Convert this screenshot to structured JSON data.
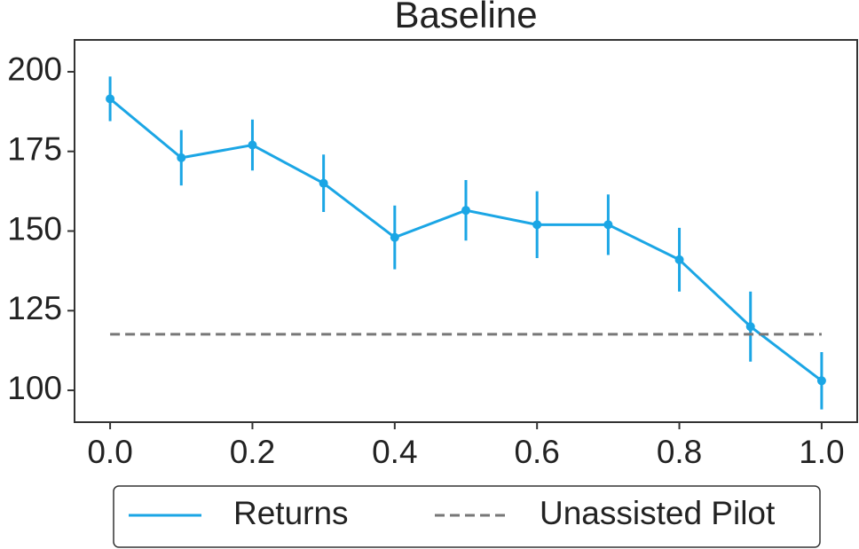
{
  "chart_data": {
    "type": "line",
    "title": "Baseline",
    "x": [
      0.0,
      0.1,
      0.2,
      0.3,
      0.4,
      0.5,
      0.6,
      0.7,
      0.8,
      0.9,
      1.0
    ],
    "series": [
      {
        "name": "Returns",
        "color": "#1ba6e5",
        "values": [
          191.5,
          173,
          177,
          165,
          148,
          156.5,
          152,
          152,
          141,
          120,
          103
        ],
        "errors": [
          7,
          8.7,
          8,
          9,
          10,
          9.5,
          10.5,
          9.5,
          10,
          11,
          9
        ],
        "line_style": "solid",
        "markers": true
      },
      {
        "name": "Unassisted Pilot",
        "color": "#777777",
        "x": [
          0.0,
          1.0
        ],
        "values": [
          117.6,
          117.6
        ],
        "line_style": "dashed",
        "markers": false
      }
    ],
    "xlim": [
      -0.05,
      1.05
    ],
    "xticks": [
      {
        "value": 0,
        "label": "0.0"
      },
      0.2,
      0.4,
      0.6,
      0.8,
      {
        "value": 1,
        "label": "1.0"
      }
    ],
    "ylim": [
      90,
      210
    ],
    "yticks": [
      100,
      125,
      150,
      175,
      200
    ],
    "grid": false,
    "legend": "bottom"
  }
}
